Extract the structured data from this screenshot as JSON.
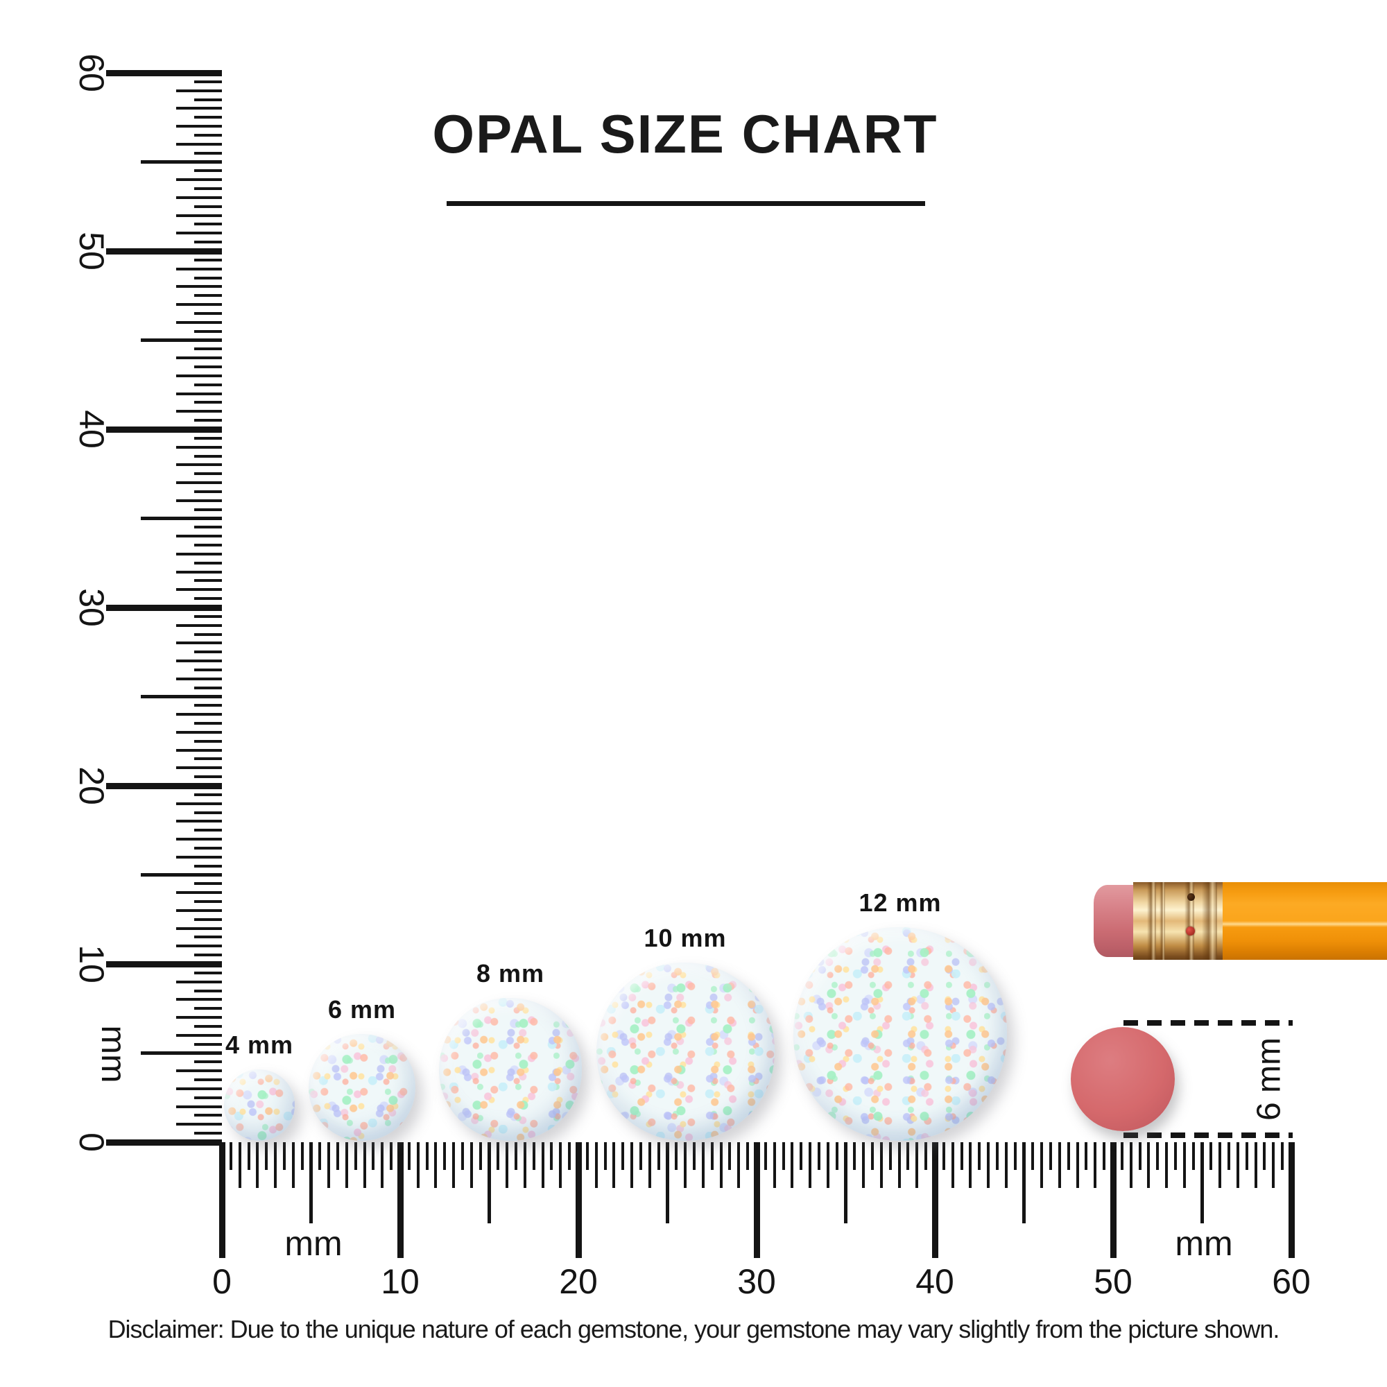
{
  "title": {
    "text": "OPAL SIZE CHART"
  },
  "disclaimer": "Disclaimer: Due to the unique nature of each gemstone, your gemstone may vary slightly from the picture shown.",
  "opals": [
    {
      "label": "4 mm",
      "size_mm": 4
    },
    {
      "label": "6 mm",
      "size_mm": 6
    },
    {
      "label": "8 mm",
      "size_mm": 8
    },
    {
      "label": "10 mm",
      "size_mm": 10
    },
    {
      "label": "12 mm",
      "size_mm": 12
    }
  ],
  "vertical_ruler": {
    "unit_label": "mm",
    "min_mm": 0,
    "max_mm": 60,
    "tick_step_mm": 0.5,
    "numbered_every_mm": 10,
    "labels": [
      "0",
      "10",
      "20",
      "30",
      "40",
      "50",
      "60"
    ]
  },
  "horizontal_ruler": {
    "unit_label_left": "mm",
    "unit_label_right": "mm",
    "min_mm": 0,
    "max_mm": 60,
    "tick_step_mm": 0.5,
    "numbered_every_mm": 10,
    "labels": [
      "0",
      "10",
      "20",
      "30",
      "40",
      "50",
      "60"
    ]
  },
  "eraser_reference": {
    "label": "6 mm",
    "size_mm": 6
  },
  "colors": {
    "ink": "#141414",
    "pencil_body_orange": "#f79d12",
    "ferrule_gold": "#d9ab62",
    "pencil_eraser_pink": "#d4777d",
    "eraser_dot_red": "#d5696c",
    "opal_base": "#e7f3f5",
    "opal_speckles": [
      "#ffa64d",
      "#ff8d6e",
      "#f59fc4",
      "#96a0f5",
      "#6ee8a0",
      "#ffd36e",
      "#a8e6f5"
    ]
  }
}
